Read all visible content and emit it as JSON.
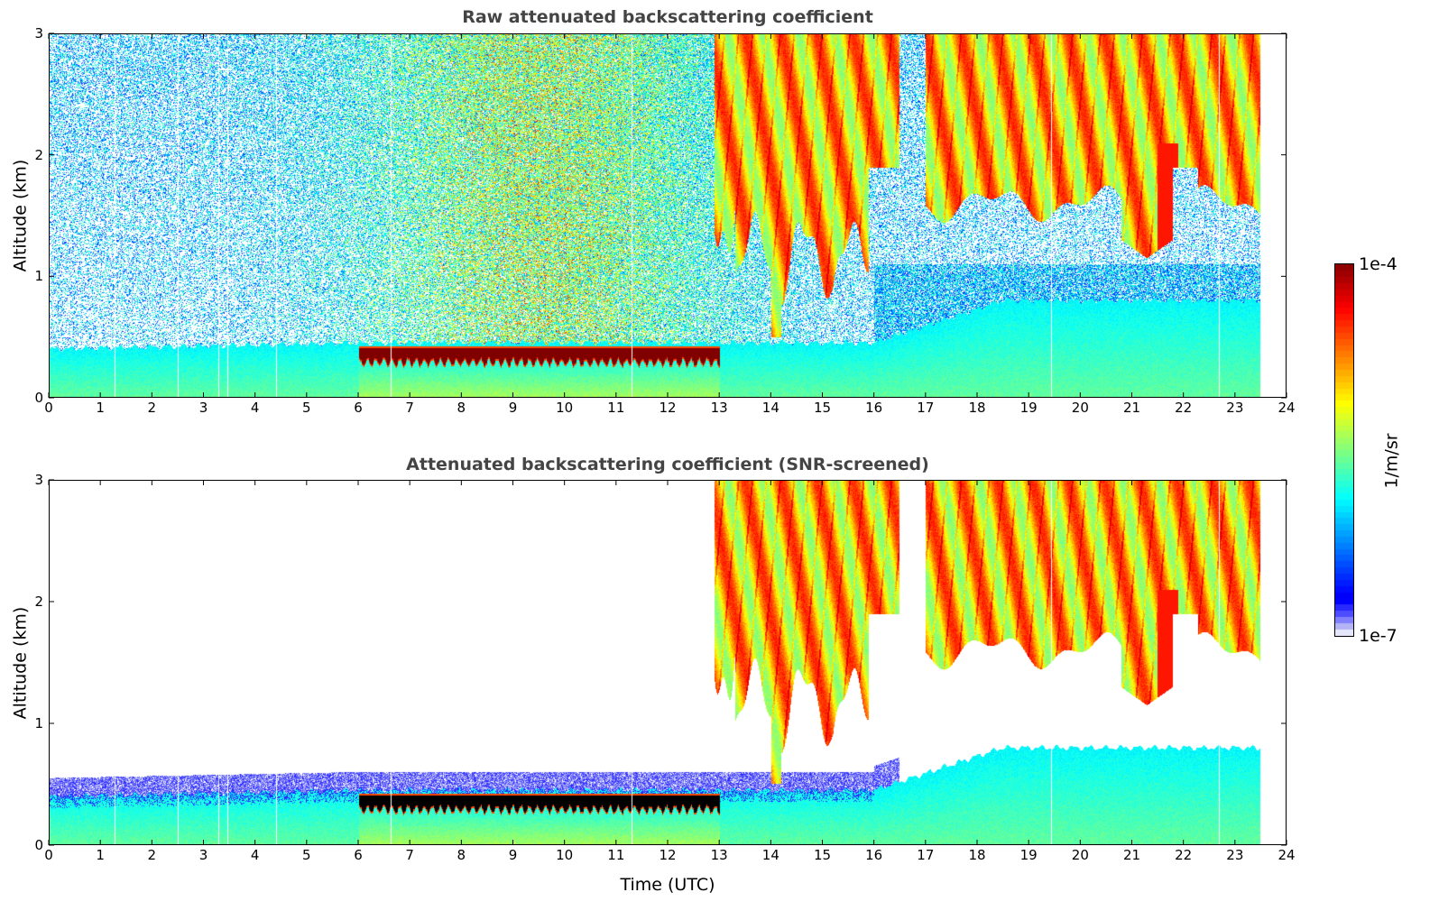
{
  "chart_data": [
    {
      "type": "heatmap",
      "title": "Raw attenuated backscattering coefficient",
      "xlabel": "",
      "ylabel": "Altitude (km)",
      "xlim": [
        0,
        24
      ],
      "ylim": [
        0,
        3
      ],
      "xticks": [
        "0",
        "1",
        "2",
        "3",
        "4",
        "5",
        "6",
        "7",
        "8",
        "9",
        "10",
        "11",
        "12",
        "13",
        "14",
        "15",
        "16",
        "17",
        "18",
        "19",
        "20",
        "21",
        "22",
        "23",
        "24"
      ],
      "yticks": [
        "0",
        "1",
        "2",
        "3"
      ],
      "screened": false
    },
    {
      "type": "heatmap",
      "title": "Attenuated backscattering coefficient (SNR-screened)",
      "xlabel": "Time (UTC)",
      "ylabel": "Altitude (km)",
      "xlim": [
        0,
        24
      ],
      "ylim": [
        0,
        3
      ],
      "xticks": [
        "0",
        "1",
        "2",
        "3",
        "4",
        "5",
        "6",
        "7",
        "8",
        "9",
        "10",
        "11",
        "12",
        "13",
        "14",
        "15",
        "16",
        "17",
        "18",
        "19",
        "20",
        "21",
        "22",
        "23",
        "24"
      ],
      "yticks": [
        "0",
        "1",
        "2",
        "3"
      ],
      "screened": true
    }
  ],
  "colorbar": {
    "max_label": "1e-4",
    "min_label": "1e-7",
    "unit": "1/m/sr",
    "log10_range": [
      -7,
      -4
    ],
    "colormap": "jet with lavender low end"
  },
  "features": {
    "data_end_hour": 23.5,
    "missing_profiles_hours": [
      1.27,
      2.48,
      3.28,
      3.45,
      4.4,
      6.62,
      11.3,
      19.45,
      22.7
    ],
    "boundary_layer_top_km": [
      [
        0,
        0.4
      ],
      [
        6,
        0.45
      ],
      [
        13,
        0.45
      ],
      [
        16,
        0.45
      ],
      [
        18.5,
        0.8
      ],
      [
        23.5,
        0.8
      ]
    ],
    "liquid_cloud_layer": {
      "start_hour": 6,
      "end_hour": 13,
      "base_km": 0.27,
      "top_km": 0.42,
      "log10_beta": -4.0
    },
    "precipitating_cloud_1": {
      "start_hour": 12.9,
      "end_hour": 16.5,
      "base_km": 0.5,
      "top_km": 3
    },
    "precipitating_cloud_2": {
      "start_hour": 17,
      "end_hour": 23.5,
      "base_km": 1.4,
      "top_km": 3
    }
  }
}
